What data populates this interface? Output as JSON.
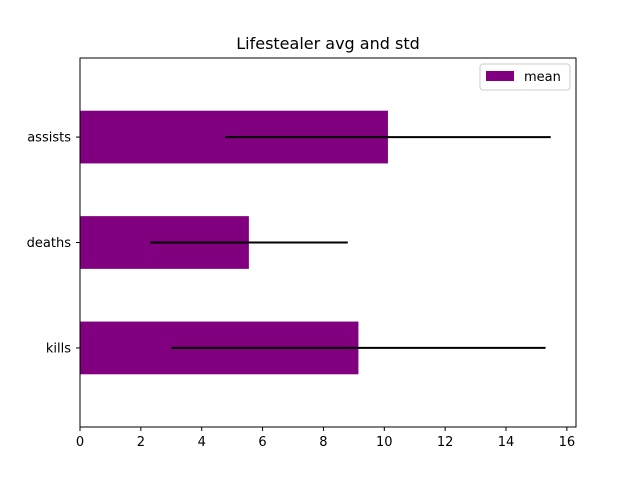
{
  "chart_data": {
    "type": "bar",
    "orientation": "horizontal",
    "title": "Lifestealer avg and std",
    "categories": [
      "kills",
      "deaths",
      "assists"
    ],
    "series": [
      {
        "name": "mean",
        "values": [
          9.15,
          5.55,
          10.12
        ],
        "error": [
          6.15,
          3.25,
          5.35
        ],
        "color": "#800080"
      }
    ],
    "errorbar_color": "#000000",
    "xlim": [
      0,
      16.3
    ],
    "xticks": [
      0,
      2,
      4,
      6,
      8,
      10,
      12,
      14,
      16
    ],
    "xlabel": "",
    "ylabel": "",
    "grid": false,
    "legend_position": "upper right"
  }
}
